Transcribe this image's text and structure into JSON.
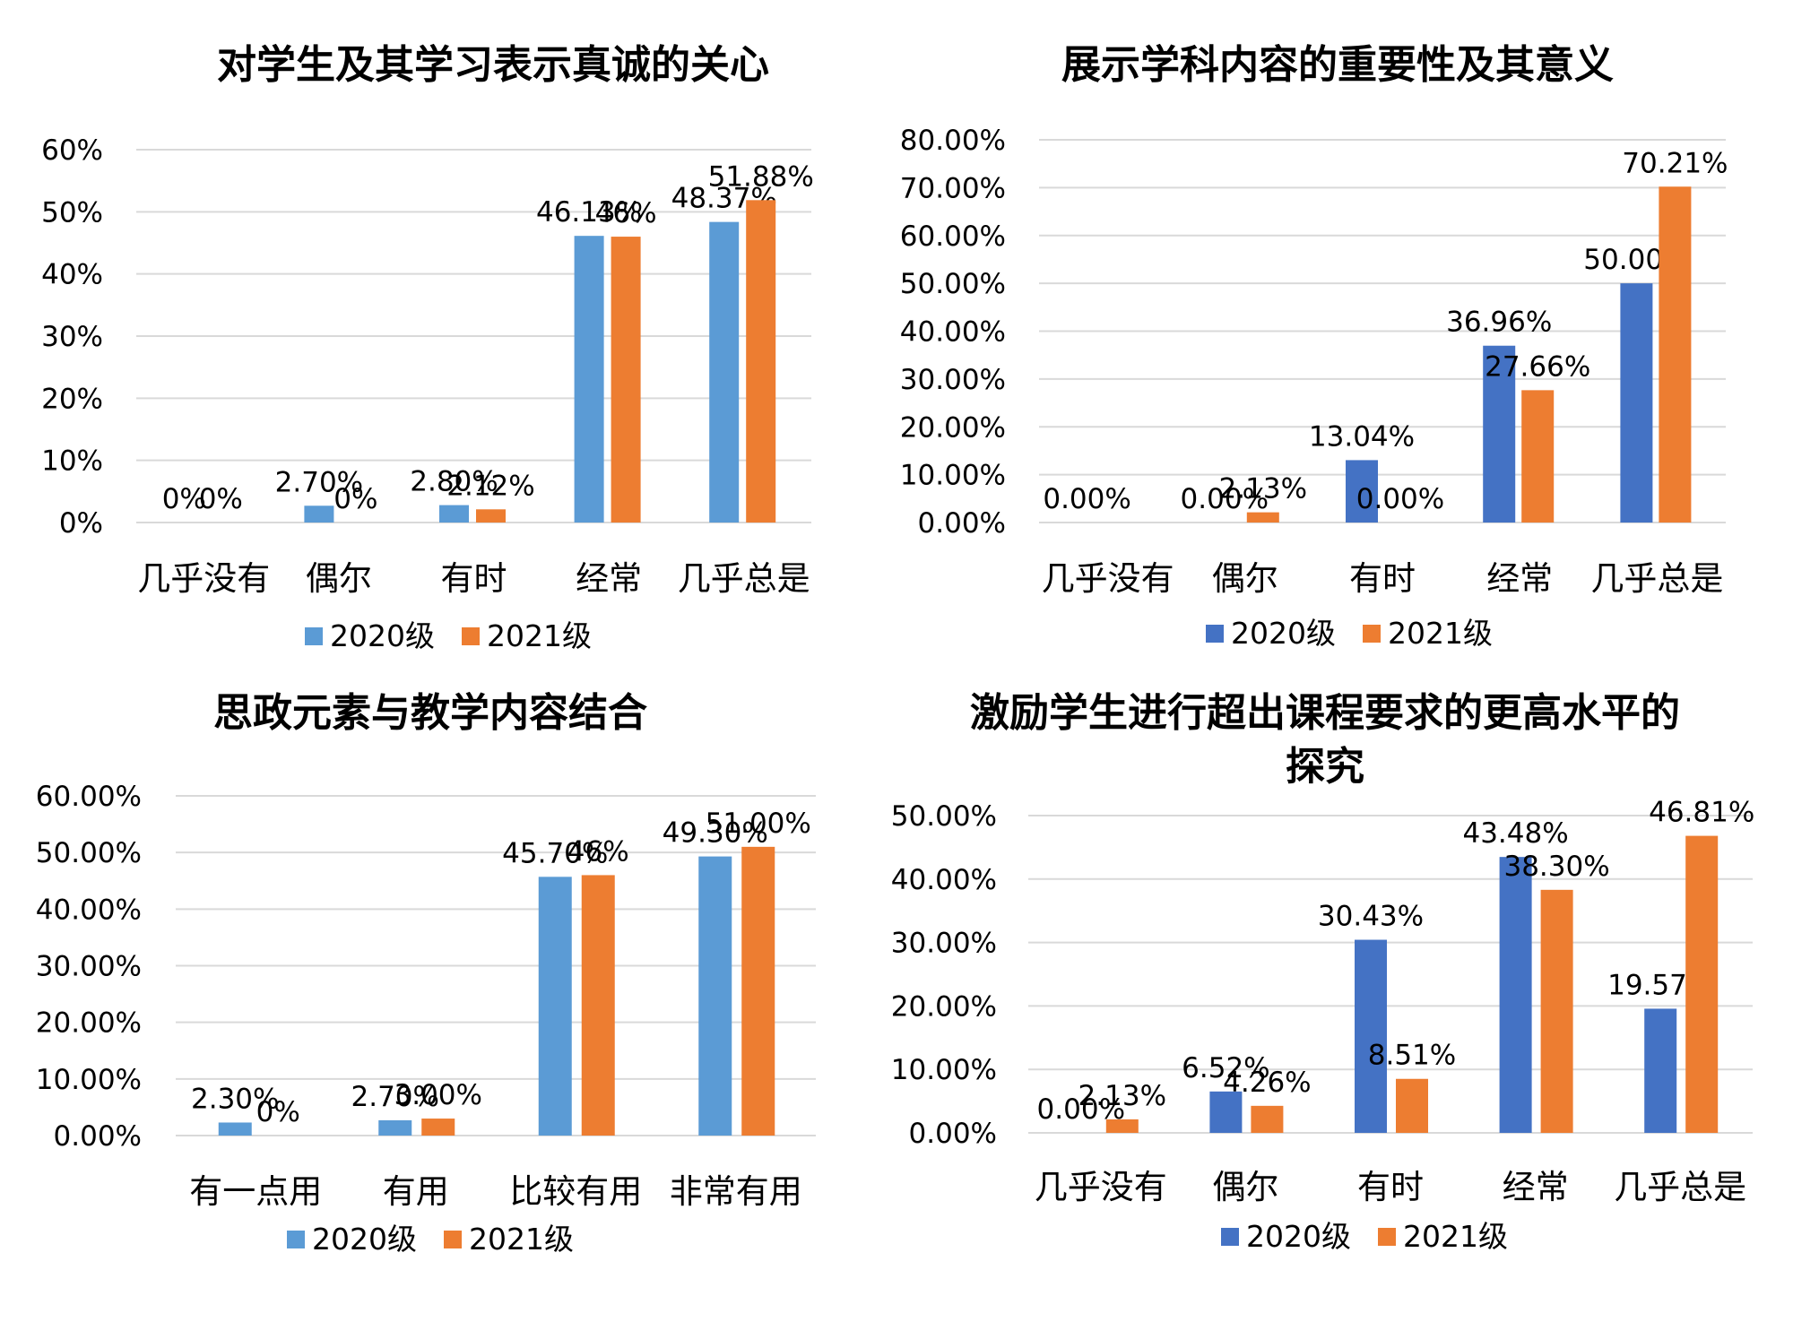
{
  "chart_data": [
    {
      "type": "bar",
      "title": [
        "对学生及其学习表示真诚的关心"
      ],
      "categories": [
        "几乎没有",
        "偶尔",
        "有时",
        "经常",
        "几乎总是"
      ],
      "y_ticks": [
        "0%",
        "10%",
        "20%",
        "30%",
        "40%",
        "50%",
        "60%"
      ],
      "ylim": [
        0,
        60
      ],
      "grid": true,
      "legend_position": "bottom",
      "series": [
        {
          "name": "2020级",
          "color": "#5b9bd5",
          "values": [
            0,
            2.7,
            2.8,
            46.13,
            48.37
          ],
          "labels": [
            "0%",
            "2.70%",
            "2.80%",
            "46.13%",
            "48.37%"
          ]
        },
        {
          "name": "2021级",
          "color": "#ed7d31",
          "values": [
            0,
            0,
            2.12,
            46,
            51.88
          ],
          "labels": [
            "0%",
            "0%",
            "2.12%",
            "46%",
            "51.88%"
          ]
        }
      ]
    },
    {
      "type": "bar",
      "title": [
        "展示学科内容的重要性及其意义"
      ],
      "categories": [
        "几乎没有",
        "偶尔",
        "有时",
        "经常",
        "几乎总是"
      ],
      "y_ticks": [
        "0.00%",
        "10.00%",
        "20.00%",
        "30.00%",
        "40.00%",
        "50.00%",
        "60.00%",
        "70.00%",
        "80.00%"
      ],
      "ylim": [
        0,
        80
      ],
      "grid": true,
      "legend_position": "bottom",
      "series": [
        {
          "name": "2020级",
          "color": "#4472c4",
          "values": [
            0,
            0,
            13.04,
            36.96,
            50.0
          ],
          "labels": [
            "0.00%",
            "0.00%",
            "13.04%",
            "36.96%",
            "50.00%"
          ]
        },
        {
          "name": "2021级",
          "color": "#ed7d31",
          "values": [
            0,
            2.13,
            0,
            27.66,
            70.21
          ],
          "labels": [
            "",
            "2.13%",
            "0.00%",
            "27.66%",
            "70.21%"
          ]
        }
      ]
    },
    {
      "type": "bar",
      "title": [
        "思政元素与教学内容结合"
      ],
      "categories": [
        "有一点用",
        "有用",
        "比较有用",
        "非常有用"
      ],
      "y_ticks": [
        "0.00%",
        "10.00%",
        "20.00%",
        "30.00%",
        "40.00%",
        "50.00%",
        "60.00%"
      ],
      "ylim": [
        0,
        60
      ],
      "grid": true,
      "legend_position": "bottom",
      "series": [
        {
          "name": "2020级",
          "color": "#5b9bd5",
          "values": [
            2.3,
            2.7,
            45.7,
            49.3
          ],
          "labels": [
            "2.30%",
            "2.70%",
            "45.70%",
            "49.30%"
          ]
        },
        {
          "name": "2021级",
          "color": "#ed7d31",
          "values": [
            0,
            3.0,
            46,
            51.0
          ],
          "labels": [
            "0%",
            "3.00%",
            "46%",
            "51.00%"
          ]
        }
      ]
    },
    {
      "type": "bar",
      "title": [
        "激励学生进行超出课程要求的更高水平的",
        "探究"
      ],
      "categories": [
        "几乎没有",
        "偶尔",
        "有时",
        "经常",
        "几乎总是"
      ],
      "y_ticks": [
        "0.00%",
        "10.00%",
        "20.00%",
        "30.00%",
        "40.00%",
        "50.00%"
      ],
      "ylim": [
        0,
        50
      ],
      "grid": true,
      "legend_position": "bottom",
      "series": [
        {
          "name": "2020级",
          "color": "#4472c4",
          "values": [
            0,
            6.52,
            30.43,
            43.48,
            19.57
          ],
          "labels": [
            "0.00%",
            "6.52%",
            "30.43%",
            "43.48%",
            "19.57%"
          ]
        },
        {
          "name": "2021级",
          "color": "#ed7d31",
          "values": [
            2.13,
            4.26,
            8.51,
            38.3,
            46.81
          ],
          "labels": [
            "2.13%",
            "4.26%",
            "8.51%",
            "38.30%",
            "46.81%"
          ]
        }
      ]
    }
  ]
}
